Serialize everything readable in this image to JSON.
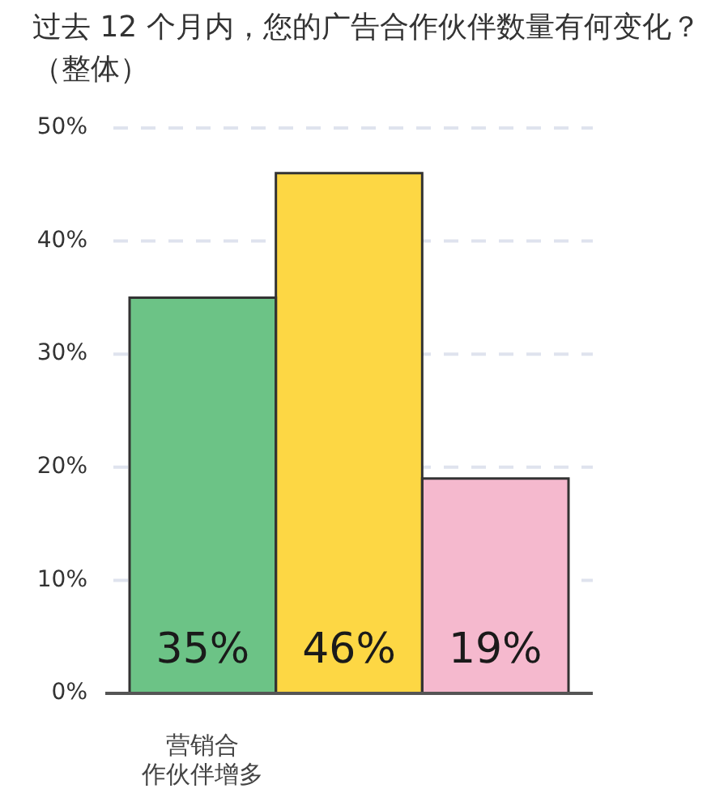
{
  "chart_data": {
    "type": "bar",
    "title": "过去 12 个月内，您的广告合作伙伴数量有何变化？",
    "subtitle": "（整体）",
    "categories": [
      "营销合作伙伴增多",
      null,
      null
    ],
    "values": [
      35,
      46,
      19
    ],
    "colors": [
      "#6cc386",
      "#fdd744",
      "#f5b9ce"
    ],
    "value_labels": [
      "35%",
      "46%",
      "19%"
    ],
    "ylim": [
      0,
      50
    ],
    "yticks": [
      {
        "value": 0,
        "label": "0%"
      },
      {
        "value": 10,
        "label": "10%"
      },
      {
        "value": 20,
        "label": "20%"
      },
      {
        "value": 30,
        "label": "30%"
      },
      {
        "value": 40,
        "label": "40%"
      },
      {
        "value": 50,
        "label": "50%"
      }
    ],
    "grid": "y"
  }
}
